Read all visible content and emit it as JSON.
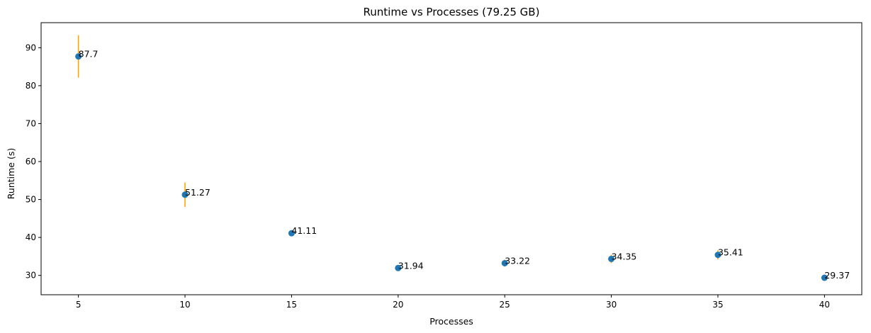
{
  "chart_data": {
    "type": "scatter",
    "title": "Runtime vs Processes (79.25 GB)",
    "xlabel": "Processes",
    "ylabel": "Runtime (s)",
    "xlim": [
      3.25,
      41.75
    ],
    "ylim": [
      24.9,
      96.6
    ],
    "xticks": [
      5,
      10,
      15,
      20,
      25,
      30,
      35,
      40
    ],
    "yticks": [
      30,
      40,
      50,
      60,
      70,
      80,
      90
    ],
    "grid": false,
    "point_color": "#1f77b4",
    "errorbar_color": "#ffa500",
    "points": [
      {
        "x": 5,
        "y": 87.7,
        "err": 5.6,
        "label": "87.7"
      },
      {
        "x": 10,
        "y": 51.27,
        "err": 3.2,
        "label": "51.27"
      },
      {
        "x": 15,
        "y": 41.11,
        "err": 0.5,
        "label": "41.11"
      },
      {
        "x": 20,
        "y": 31.94,
        "err": 0.4,
        "label": "31.94"
      },
      {
        "x": 25,
        "y": 33.22,
        "err": 0.9,
        "label": "33.22"
      },
      {
        "x": 30,
        "y": 34.35,
        "err": 1.1,
        "label": "34.35"
      },
      {
        "x": 35,
        "y": 35.41,
        "err": 1.2,
        "label": "35.41"
      },
      {
        "x": 40,
        "y": 29.37,
        "err": 0.7,
        "label": "29.37"
      }
    ]
  }
}
